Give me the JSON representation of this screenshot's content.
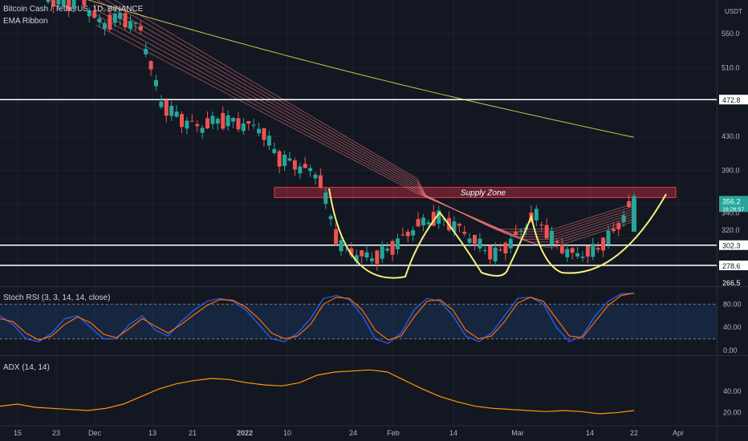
{
  "chart_data": {
    "type": "candlestick",
    "main": {
      "legend": "Bitcoin Cash / TetherUS, 1D, BINANCE",
      "ema_label": "EMA Ribbon",
      "unit": "USDT",
      "y_ticks": [
        550.0,
        510.0,
        430.0,
        390.0,
        340.0,
        320.0
      ],
      "price_labels": [
        {
          "key": "current",
          "text": "356.2",
          "sub": "16:26:57",
          "bg": "#26a69a"
        },
        {
          "key": "r1",
          "text": "472.8",
          "bg": "#ffffff"
        },
        {
          "key": "r2",
          "text": "302.3",
          "bg": "#ffffff"
        },
        {
          "key": "r3",
          "text": "278.6",
          "bg": "#ffffff"
        },
        {
          "key": "low",
          "text": "266.5",
          "bg": "#131722"
        }
      ],
      "horizontal_levels": [
        472.8,
        302.3,
        278.6
      ],
      "supply_zone": {
        "label": "Supply Zone",
        "from": 358,
        "to": 370
      },
      "annotations": [
        "cup-and-handle curves"
      ],
      "ohlc_points": [
        [
          "Nov 12",
          600,
          620,
          585,
          610
        ],
        [
          "Nov 15",
          610,
          618,
          590,
          598
        ],
        [
          "Nov 20",
          598,
          605,
          575,
          585
        ],
        [
          "Nov 23",
          585,
          598,
          570,
          590
        ],
        [
          "Nov 26",
          590,
          600,
          545,
          560
        ],
        [
          "Nov 29",
          560,
          575,
          550,
          570
        ],
        [
          "Dec 1",
          570,
          580,
          545,
          555
        ],
        [
          "Dec 4",
          555,
          560,
          350,
          470
        ],
        [
          "Dec 6",
          470,
          480,
          430,
          450
        ],
        [
          "Dec 13",
          455,
          470,
          425,
          440
        ],
        [
          "Dec 21",
          445,
          465,
          420,
          450
        ],
        [
          "Dec 28",
          460,
          468,
          440,
          445
        ],
        [
          "Jan 3",
          445,
          450,
          430,
          440
        ],
        [
          "Jan 8",
          430,
          435,
          400,
          405
        ],
        [
          "Jan 12",
          400,
          415,
          380,
          395
        ],
        [
          "Jan 17",
          395,
          405,
          375,
          385
        ],
        [
          "Jan 21",
          375,
          380,
          300,
          305
        ],
        [
          "Jan 24",
          300,
          305,
          266.5,
          290
        ],
        [
          "Jan 28",
          290,
          300,
          282,
          288
        ],
        [
          "Feb 1",
          288,
          310,
          285,
          305
        ],
        [
          "Feb 5",
          305,
          330,
          300,
          325
        ],
        [
          "Feb 9",
          325,
          345,
          320,
          335
        ],
        [
          "Feb 14",
          335,
          340,
          320,
          325
        ],
        [
          "Feb 19",
          325,
          330,
          300,
          305
        ],
        [
          "Feb 24",
          305,
          310,
          270,
          290
        ],
        [
          "Feb 28",
          290,
          315,
          285,
          312
        ],
        [
          "Mar 3",
          312,
          345,
          310,
          338
        ],
        [
          "Mar 7",
          338,
          340,
          300,
          305
        ],
        [
          "Mar 11",
          305,
          315,
          285,
          290
        ],
        [
          "Mar 14",
          290,
          300,
          283,
          295
        ],
        [
          "Mar 17",
          295,
          320,
          293,
          318
        ],
        [
          "Mar 21",
          318,
          360,
          316,
          356.2
        ]
      ],
      "ema200_points": [
        [
          0,
          620
        ],
        [
          300,
          540
        ],
        [
          600,
          470
        ],
        [
          790,
          430
        ]
      ]
    },
    "stoch_rsi": {
      "legend": "Stoch RSI (3, 3, 14, 14, close)",
      "y_ticks": [
        80.0,
        40.0,
        0.0
      ],
      "bands": [
        80,
        20
      ],
      "k_values": [
        60,
        45,
        20,
        15,
        30,
        55,
        60,
        40,
        20,
        20,
        45,
        60,
        35,
        25,
        50,
        70,
        85,
        90,
        85,
        70,
        45,
        20,
        15,
        30,
        55,
        90,
        95,
        88,
        60,
        20,
        12,
        30,
        70,
        90,
        85,
        60,
        25,
        15,
        30,
        60,
        90,
        92,
        80,
        40,
        15,
        25,
        60,
        85,
        98,
        99
      ],
      "d_values": [
        55,
        50,
        30,
        18,
        25,
        45,
        58,
        48,
        28,
        22,
        38,
        55,
        42,
        30,
        45,
        62,
        78,
        88,
        87,
        75,
        55,
        30,
        20,
        25,
        45,
        80,
        92,
        90,
        70,
        35,
        18,
        25,
        58,
        85,
        88,
        70,
        35,
        20,
        25,
        50,
        82,
        92,
        85,
        55,
        25,
        22,
        50,
        78,
        95,
        99
      ]
    },
    "adx": {
      "legend": "ADX (14, 14)",
      "y_ticks": [
        40.0,
        20.0
      ],
      "values": [
        26,
        28,
        25,
        24,
        23,
        22,
        24,
        28,
        35,
        42,
        47,
        50,
        52,
        51,
        48,
        46,
        45,
        48,
        55,
        58,
        59,
        60,
        58,
        50,
        42,
        35,
        30,
        26,
        24,
        23,
        22,
        21,
        22,
        21,
        19,
        20,
        22
      ]
    },
    "x_ticks": [
      "15",
      "23",
      "Dec",
      "13",
      "21",
      "2022",
      "10",
      "24",
      "Feb",
      "14",
      "Mar",
      "14",
      "22",
      "Apr"
    ]
  }
}
